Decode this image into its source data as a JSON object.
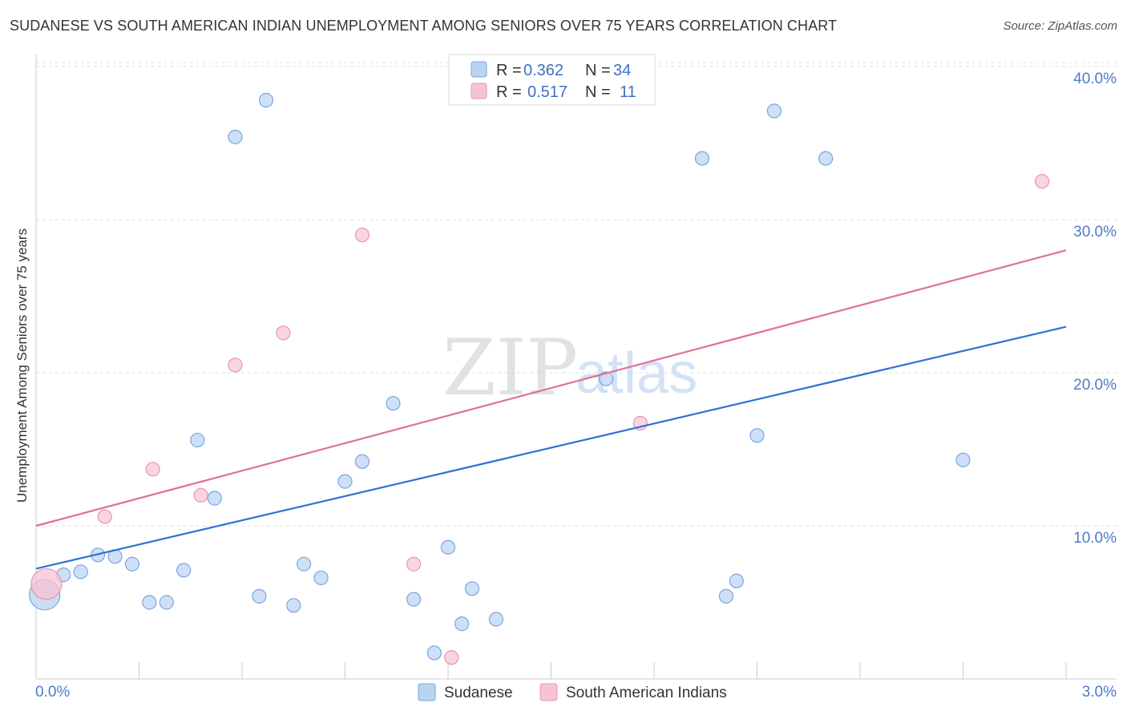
{
  "header": {
    "title": "SUDANESE VS SOUTH AMERICAN INDIAN UNEMPLOYMENT AMONG SENIORS OVER 75 YEARS CORRELATION CHART",
    "source": "Source: ZipAtlas.com"
  },
  "watermark": {
    "zip": "ZIP",
    "atlas": "atlas"
  },
  "legend": {
    "rows": [
      {
        "r_label": "R =",
        "r_value": "0.362",
        "n_label": "N =",
        "n_value": "34"
      },
      {
        "r_label": "R =",
        "r_value": "0.517",
        "n_label": "N =",
        "n_value": "11"
      }
    ]
  },
  "chart_data": {
    "type": "scatter",
    "title": "SUDANESE VS SOUTH AMERICAN INDIAN UNEMPLOYMENT AMONG SENIORS OVER 75 YEARS CORRELATION CHART",
    "xlabel": "",
    "ylabel": "Unemployment Among Seniors over 75 years",
    "xlim": [
      0,
      3.0
    ],
    "ylim": [
      0,
      41.5
    ],
    "x_tick_labels": {
      "min": "0.0%",
      "max": "3.0%"
    },
    "y_ticks": [
      10,
      20,
      30,
      40
    ],
    "y_tick_labels": [
      "10.0%",
      "20.0%",
      "30.0%",
      "40.0%"
    ],
    "grid": true,
    "colors": {
      "sudanese_fill": "#b9d3f3",
      "sudanese_stroke": "#7aa6dc",
      "sudanese_line": "#2f72d0",
      "sai_fill": "#f7c3d3",
      "sai_stroke": "#e895b0",
      "sai_line": "#e0709a",
      "tick_text": "#4a7cc9"
    },
    "series": [
      {
        "name": "Sudanese",
        "r": 0.362,
        "n": 34,
        "trend": {
          "x0": 0.0,
          "y0": 7.2,
          "x1": 3.0,
          "y1": 23.0
        },
        "points": [
          {
            "x": 0.025,
            "y": 5.5,
            "big": true
          },
          {
            "x": 0.08,
            "y": 6.8
          },
          {
            "x": 0.13,
            "y": 7.0
          },
          {
            "x": 0.18,
            "y": 8.1
          },
          {
            "x": 0.23,
            "y": 8.0
          },
          {
            "x": 0.28,
            "y": 7.5
          },
          {
            "x": 0.33,
            "y": 5.0
          },
          {
            "x": 0.38,
            "y": 5.0
          },
          {
            "x": 0.43,
            "y": 7.1
          },
          {
            "x": 0.47,
            "y": 15.6
          },
          {
            "x": 0.52,
            "y": 11.8
          },
          {
            "x": 0.58,
            "y": 35.4
          },
          {
            "x": 0.65,
            "y": 5.4
          },
          {
            "x": 0.67,
            "y": 37.8
          },
          {
            "x": 0.75,
            "y": 4.8
          },
          {
            "x": 0.78,
            "y": 7.5
          },
          {
            "x": 0.83,
            "y": 6.6
          },
          {
            "x": 0.9,
            "y": 12.9
          },
          {
            "x": 0.95,
            "y": 14.2
          },
          {
            "x": 1.04,
            "y": 18.0
          },
          {
            "x": 1.1,
            "y": 5.2
          },
          {
            "x": 1.16,
            "y": 1.7
          },
          {
            "x": 1.2,
            "y": 8.6
          },
          {
            "x": 1.24,
            "y": 3.6
          },
          {
            "x": 1.27,
            "y": 5.9
          },
          {
            "x": 1.34,
            "y": 3.9
          },
          {
            "x": 1.66,
            "y": 19.6
          },
          {
            "x": 1.94,
            "y": 34.0
          },
          {
            "x": 2.01,
            "y": 5.4
          },
          {
            "x": 2.04,
            "y": 6.4
          },
          {
            "x": 2.1,
            "y": 15.9
          },
          {
            "x": 2.15,
            "y": 37.1
          },
          {
            "x": 2.3,
            "y": 34.0
          },
          {
            "x": 2.7,
            "y": 14.3
          }
        ]
      },
      {
        "name": "South American Indians",
        "r": 0.517,
        "n": 11,
        "trend": {
          "x0": 0.0,
          "y0": 10.0,
          "x1": 3.0,
          "y1": 28.0
        },
        "points": [
          {
            "x": 0.03,
            "y": 6.2,
            "big": true
          },
          {
            "x": 0.2,
            "y": 10.6
          },
          {
            "x": 0.34,
            "y": 13.7
          },
          {
            "x": 0.48,
            "y": 12.0
          },
          {
            "x": 0.58,
            "y": 20.5
          },
          {
            "x": 0.72,
            "y": 22.6
          },
          {
            "x": 0.95,
            "y": 29.0
          },
          {
            "x": 1.1,
            "y": 7.5
          },
          {
            "x": 1.21,
            "y": 1.4
          },
          {
            "x": 1.76,
            "y": 16.7
          },
          {
            "x": 2.93,
            "y": 32.5
          }
        ]
      }
    ]
  }
}
